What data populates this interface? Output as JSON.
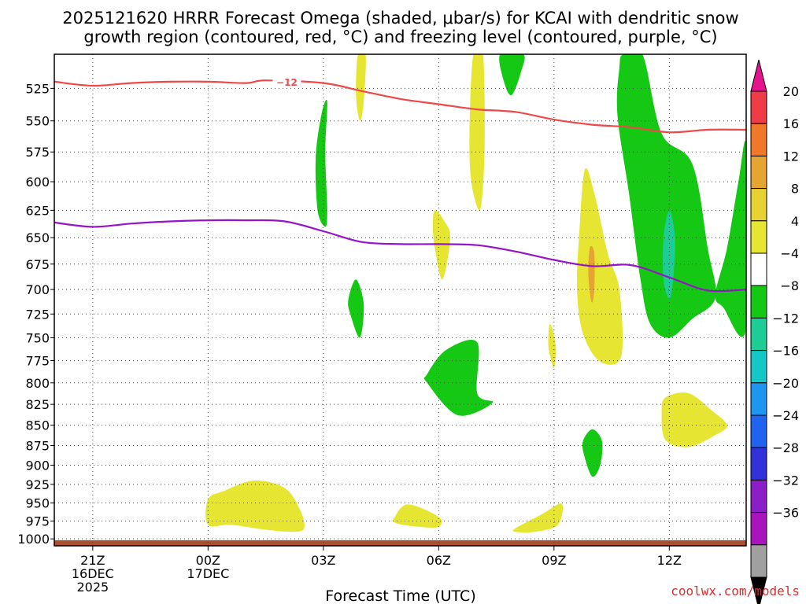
{
  "chart_data": {
    "type": "heatmap",
    "title_line1": "2025121620 HRRR Forecast Omega (shaded, μbar/s) for KCAI with dendritic snow",
    "title_line2": "growth region (contoured, red, °C) and freezing level (contoured, purple, °C)",
    "xlabel": "Forecast Time (UTC)",
    "ylabel": "",
    "credit": "coolwx.com/models",
    "x_unit": "hours since 2025-12-16 20Z",
    "xlim": [
      0,
      18
    ],
    "ylim_pressure_hpa": [
      1010,
      500
    ],
    "x_ticks": [
      {
        "hour": 1,
        "lines": [
          "21Z",
          "16DEC",
          "2025"
        ]
      },
      {
        "hour": 4,
        "lines": [
          "00Z",
          "17DEC"
        ]
      },
      {
        "hour": 7,
        "lines": [
          "03Z"
        ]
      },
      {
        "hour": 10,
        "lines": [
          "06Z"
        ]
      },
      {
        "hour": 13,
        "lines": [
          "09Z"
        ]
      },
      {
        "hour": 16,
        "lines": [
          "12Z"
        ]
      }
    ],
    "y_ticks": [
      525,
      550,
      575,
      600,
      625,
      650,
      675,
      700,
      725,
      750,
      775,
      800,
      825,
      850,
      875,
      900,
      925,
      950,
      975,
      1000
    ],
    "grid": true,
    "colorbar": {
      "levels": [
        "20",
        "16",
        "12",
        "8",
        "4",
        "−4",
        "−8",
        "−12",
        "−16",
        "−20",
        "−24",
        "−28",
        "−32",
        "−36"
      ],
      "colors": [
        "#f03c46",
        "#f07828",
        "#e6a532",
        "#e6d232",
        "#e6e632",
        "#ffffff",
        "#14c814",
        "#1ecc96",
        "#14c8c8",
        "#1e96f0",
        "#1e64f0",
        "#3232dc",
        "#8c1ec8",
        "#aa14be",
        "#a0a0a0"
      ],
      "over_color": "#e6148c",
      "under_color": "#000000"
    },
    "lines": [
      {
        "name": "Dendritic growth region",
        "label": "−12",
        "color": "#f04848",
        "points": [
          [
            0,
            520
          ],
          [
            1,
            523
          ],
          [
            2,
            521
          ],
          [
            3,
            520
          ],
          [
            4,
            520
          ],
          [
            5,
            521
          ],
          [
            5.5,
            519
          ],
          [
            7,
            521
          ],
          [
            8,
            527
          ],
          [
            9,
            533
          ],
          [
            10,
            537
          ],
          [
            11,
            541
          ],
          [
            12,
            543
          ],
          [
            13,
            549
          ],
          [
            14,
            553
          ],
          [
            15,
            555
          ],
          [
            16,
            559
          ],
          [
            17,
            557
          ],
          [
            18,
            557
          ]
        ]
      },
      {
        "name": "Freezing level",
        "color": "#9614c8",
        "points": [
          [
            0,
            636
          ],
          [
            1,
            640
          ],
          [
            2,
            637
          ],
          [
            3,
            635
          ],
          [
            4,
            634
          ],
          [
            5,
            634
          ],
          [
            6,
            635
          ],
          [
            7,
            644
          ],
          [
            8,
            654
          ],
          [
            9,
            656
          ],
          [
            10,
            656
          ],
          [
            11,
            657
          ],
          [
            12,
            663
          ],
          [
            13,
            671
          ],
          [
            14,
            677
          ],
          [
            15,
            676
          ],
          [
            16,
            688
          ],
          [
            17,
            701
          ],
          [
            18,
            700
          ]
        ]
      }
    ],
    "shaded_regions": [
      {
        "value_class": "+4 to +8",
        "color": "#e6e632",
        "pts": [
          [
            7.9,
            500
          ],
          [
            8.1,
            500
          ],
          [
            8.05,
            535
          ],
          [
            7.95,
            550
          ],
          [
            7.85,
            530
          ]
        ]
      },
      {
        "value_class": "+4 to +8",
        "color": "#e6e632",
        "pts": [
          [
            10.9,
            500
          ],
          [
            11.15,
            500
          ],
          [
            11.2,
            560
          ],
          [
            11.15,
            605
          ],
          [
            11.05,
            625
          ],
          [
            10.85,
            600
          ],
          [
            10.8,
            560
          ]
        ]
      },
      {
        "value_class": "+4 to +8",
        "color": "#e6e632",
        "pts": [
          [
            9.9,
            625
          ],
          [
            10.15,
            635
          ],
          [
            10.3,
            650
          ],
          [
            10.1,
            690
          ],
          [
            9.9,
            660
          ],
          [
            9.85,
            640
          ]
        ]
      },
      {
        "value_class": "+4 to +8",
        "color": "#e6e632",
        "pts": [
          [
            13.8,
            590
          ],
          [
            14.05,
            610
          ],
          [
            14.4,
            665
          ],
          [
            14.7,
            700
          ],
          [
            14.75,
            770
          ],
          [
            14.2,
            776
          ],
          [
            13.75,
            745
          ],
          [
            13.6,
            700
          ],
          [
            13.65,
            650
          ]
        ]
      },
      {
        "value_class": "+8 to +12",
        "color": "#e6a532",
        "pts": [
          [
            13.95,
            658
          ],
          [
            14.05,
            665
          ],
          [
            14.05,
            700
          ],
          [
            13.98,
            713
          ],
          [
            13.9,
            690
          ],
          [
            13.9,
            670
          ]
        ]
      },
      {
        "value_class": "+4 to +8",
        "color": "#e6e632",
        "pts": [
          [
            12.9,
            735
          ],
          [
            13.05,
            760
          ],
          [
            13.0,
            783
          ],
          [
            12.9,
            770
          ],
          [
            12.85,
            755
          ]
        ]
      },
      {
        "value_class": "+4 to +8",
        "color": "#e6e632",
        "pts": [
          [
            15.9,
            817
          ],
          [
            16.5,
            812
          ],
          [
            17.1,
            832
          ],
          [
            17.5,
            850
          ],
          [
            17.2,
            862
          ],
          [
            16.5,
            877
          ],
          [
            15.9,
            868
          ],
          [
            15.8,
            835
          ]
        ]
      },
      {
        "value_class": "+4 to +8",
        "color": "#e6e632",
        "pts": [
          [
            4.0,
            945
          ],
          [
            4.4,
            934
          ],
          [
            5.2,
            920
          ],
          [
            6.0,
            930
          ],
          [
            6.4,
            960
          ],
          [
            6.5,
            985
          ],
          [
            6.2,
            990
          ],
          [
            5.5,
            987
          ],
          [
            4.6,
            980
          ],
          [
            4.0,
            980
          ]
        ]
      },
      {
        "value_class": "+4 to +8",
        "color": "#e6e632",
        "pts": [
          [
            8.85,
            970
          ],
          [
            9.2,
            952
          ],
          [
            10.0,
            969
          ],
          [
            10.0,
            983
          ],
          [
            9.5,
            983
          ],
          [
            8.9,
            978
          ]
        ]
      },
      {
        "value_class": "+4 to +8",
        "color": "#e6e632",
        "pts": [
          [
            12.0,
            985
          ],
          [
            12.7,
            965
          ],
          [
            13.2,
            951
          ],
          [
            13.1,
            980
          ],
          [
            12.5,
            990
          ],
          [
            12.0,
            990
          ]
        ]
      },
      {
        "value_class": "−4 to −8",
        "color": "#14c814",
        "pts": [
          [
            7.1,
            535
          ],
          [
            7.05,
            575
          ],
          [
            7.1,
            625
          ],
          [
            7.05,
            640
          ],
          [
            6.85,
            625
          ],
          [
            6.8,
            580
          ],
          [
            6.95,
            545
          ]
        ]
      },
      {
        "value_class": "−4 to −8",
        "color": "#14c814",
        "pts": [
          [
            11.6,
            500
          ],
          [
            12.2,
            500
          ],
          [
            12.15,
            512
          ],
          [
            11.9,
            530
          ],
          [
            11.7,
            520
          ]
        ]
      },
      {
        "value_class": "−4 to −8",
        "color": "#14c814",
        "pts": [
          [
            14.8,
            500
          ],
          [
            15.3,
            500
          ],
          [
            15.8,
            560
          ],
          [
            16.6,
            585
          ],
          [
            17.0,
            660
          ],
          [
            17.2,
            708
          ],
          [
            16.6,
            730
          ],
          [
            16.0,
            750
          ],
          [
            15.5,
            735
          ],
          [
            15.25,
            690
          ],
          [
            14.95,
            610
          ],
          [
            14.65,
            545
          ],
          [
            14.7,
            510
          ]
        ]
      },
      {
        "value_class": "−8 to −12",
        "color": "#1ecc96",
        "pts": [
          [
            16.0,
            625
          ],
          [
            16.15,
            650
          ],
          [
            16.1,
            690
          ],
          [
            16.0,
            710
          ],
          [
            15.85,
            690
          ],
          [
            15.85,
            650
          ]
        ]
      },
      {
        "value_class": "−4 to −8",
        "color": "#14c814",
        "pts": [
          [
            18.0,
            572
          ],
          [
            18.0,
            740
          ],
          [
            17.4,
            718
          ],
          [
            17.2,
            705
          ],
          [
            17.5,
            660
          ],
          [
            17.8,
            600
          ]
        ]
      },
      {
        "value_class": "−4 to −8",
        "color": "#14c814",
        "pts": [
          [
            7.85,
            690
          ],
          [
            8.05,
            715
          ],
          [
            7.95,
            750
          ],
          [
            7.7,
            725
          ],
          [
            7.65,
            710
          ]
        ]
      },
      {
        "value_class": "−4 to −8",
        "color": "#14c814",
        "pts": [
          [
            10.2,
            763
          ],
          [
            11.0,
            755
          ],
          [
            11.0,
            812
          ],
          [
            11.4,
            823
          ],
          [
            10.5,
            838
          ],
          [
            9.7,
            800
          ],
          [
            9.7,
            790
          ]
        ]
      },
      {
        "value_class": "−4 to −8",
        "color": "#14c814",
        "pts": [
          [
            14.0,
            855
          ],
          [
            14.25,
            870
          ],
          [
            14.2,
            900
          ],
          [
            14.0,
            915
          ],
          [
            13.8,
            890
          ],
          [
            13.75,
            870
          ]
        ]
      },
      {
        "value_class": "surface",
        "color": "#a85030",
        "pts": [
          [
            0,
            1002
          ],
          [
            18,
            1002
          ],
          [
            18,
            1010
          ],
          [
            0,
            1010
          ]
        ]
      }
    ]
  }
}
